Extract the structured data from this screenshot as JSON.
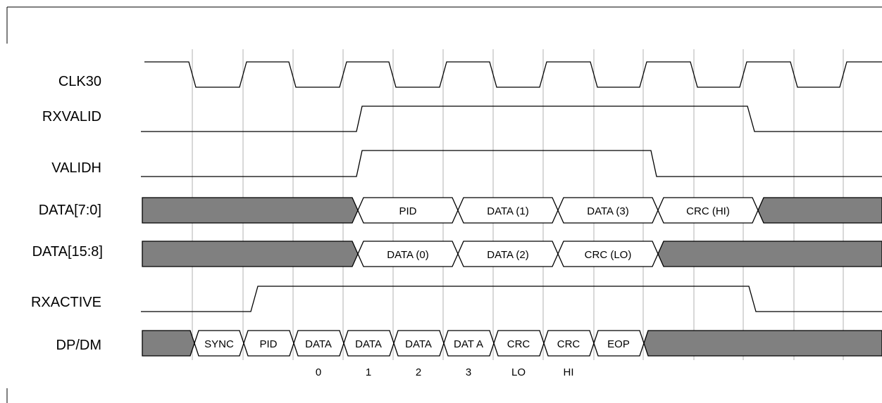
{
  "signals": [
    {
      "id": "clk30",
      "label": "CLK30"
    },
    {
      "id": "rxvalid",
      "label": "RXVALID"
    },
    {
      "id": "validh",
      "label": "VALIDH"
    },
    {
      "id": "data_lo",
      "label": "DATA[7:0]"
    },
    {
      "id": "data_hi",
      "label": "DATA[15:8]"
    },
    {
      "id": "rxactive",
      "label": "RXACTIVE"
    },
    {
      "id": "dpdm",
      "label": "DP/DM"
    }
  ],
  "bus_data_lo": [
    "PID",
    "DATA (1)",
    "DATA (3)",
    "CRC (HI)"
  ],
  "bus_data_hi": [
    "DATA (0)",
    "DATA (2)",
    "CRC (LO)"
  ],
  "bus_dpdm": [
    "SYNC",
    "PID",
    "DATA",
    "DATA",
    "DATA",
    "DAT A",
    "CRC",
    "CRC",
    "EOP"
  ],
  "byte_index": [
    "0",
    "1",
    "2",
    "3",
    "LO",
    "HI"
  ],
  "colors": {
    "line": "#000000",
    "invalid_fill": "#808080",
    "gridline": "#b0b0b0",
    "background": "#ffffff"
  }
}
